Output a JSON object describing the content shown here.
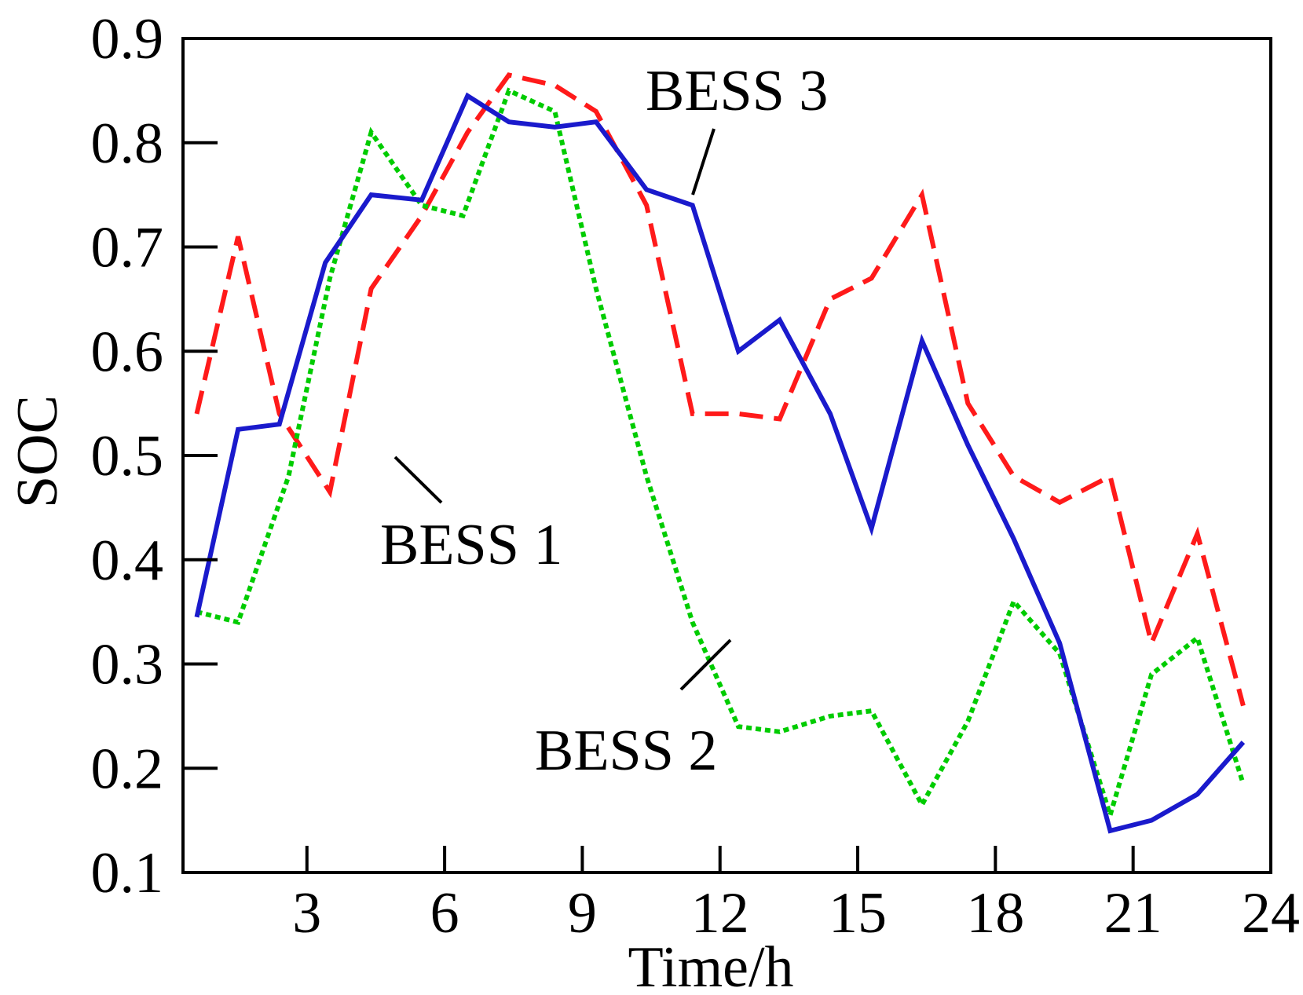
{
  "chart_data": {
    "type": "line",
    "title": "",
    "xlabel": "Time/h",
    "ylabel": "SOC",
    "xlim": [
      0.3,
      24
    ],
    "ylim": [
      0.1,
      0.9
    ],
    "xticks": [
      3,
      6,
      9,
      12,
      15,
      18,
      21,
      24
    ],
    "xtick_labels": [
      "3",
      "6",
      "9",
      "12",
      "15",
      "18",
      "21",
      "24"
    ],
    "yticks": [
      0.1,
      0.2,
      0.3,
      0.4,
      0.5,
      0.6,
      0.7,
      0.8,
      0.9
    ],
    "ytick_labels": [
      "0.1",
      "0.2",
      "0.3",
      "0.4",
      "0.5",
      "0.6",
      "0.7",
      "0.8",
      "0.9"
    ],
    "grid": false,
    "series": [
      {
        "name": "BESS 1",
        "color": "#ff1a1a",
        "style": "dashed",
        "x": [
          0.6,
          1.5,
          2.4,
          3.5,
          4.4,
          5.5,
          6.5,
          7.4,
          8.4,
          9.3,
          10.4,
          11.4,
          12.4,
          13.3,
          14.4,
          15.3,
          16.4,
          17.4,
          18.4,
          19.4,
          20.5,
          21.4,
          22.4,
          23.4
        ],
        "y": [
          0.54,
          0.71,
          0.54,
          0.465,
          0.66,
          0.73,
          0.81,
          0.865,
          0.855,
          0.83,
          0.74,
          0.54,
          0.54,
          0.535,
          0.65,
          0.67,
          0.75,
          0.55,
          0.48,
          0.455,
          0.48,
          0.32,
          0.425,
          0.26
        ]
      },
      {
        "name": "BESS 2",
        "color": "#00cc00",
        "style": "dotted",
        "x": [
          0.6,
          1.5,
          2.6,
          3.5,
          4.4,
          5.5,
          6.4,
          7.4,
          8.4,
          9.3,
          10.4,
          11.4,
          12.4,
          13.3,
          14.4,
          15.3,
          16.4,
          17.4,
          18.4,
          19.4,
          20.5,
          21.4,
          22.4,
          23.4
        ],
        "y": [
          0.35,
          0.34,
          0.48,
          0.67,
          0.81,
          0.74,
          0.73,
          0.85,
          0.83,
          0.66,
          0.48,
          0.34,
          0.24,
          0.235,
          0.25,
          0.255,
          0.165,
          0.245,
          0.36,
          0.31,
          0.155,
          0.29,
          0.325,
          0.185
        ]
      },
      {
        "name": "BESS 3",
        "color": "#1a1acc",
        "style": "solid",
        "x": [
          0.6,
          1.5,
          2.4,
          3.4,
          4.4,
          5.5,
          6.5,
          7.4,
          8.4,
          9.3,
          10.4,
          11.4,
          12.4,
          13.3,
          14.4,
          15.3,
          16.4,
          17.4,
          18.4,
          19.4,
          20.5,
          21.4,
          22.4,
          23.4
        ],
        "y": [
          0.345,
          0.525,
          0.53,
          0.685,
          0.75,
          0.745,
          0.845,
          0.82,
          0.815,
          0.82,
          0.755,
          0.74,
          0.6,
          0.63,
          0.54,
          0.43,
          0.61,
          0.51,
          0.42,
          0.32,
          0.14,
          0.15,
          0.175,
          0.225
        ]
      }
    ],
    "annotations": [
      {
        "text": "BESS 1",
        "series": "BESS 1"
      },
      {
        "text": "BESS 2",
        "series": "BESS 2"
      },
      {
        "text": "BESS 3",
        "series": "BESS 3"
      }
    ]
  }
}
